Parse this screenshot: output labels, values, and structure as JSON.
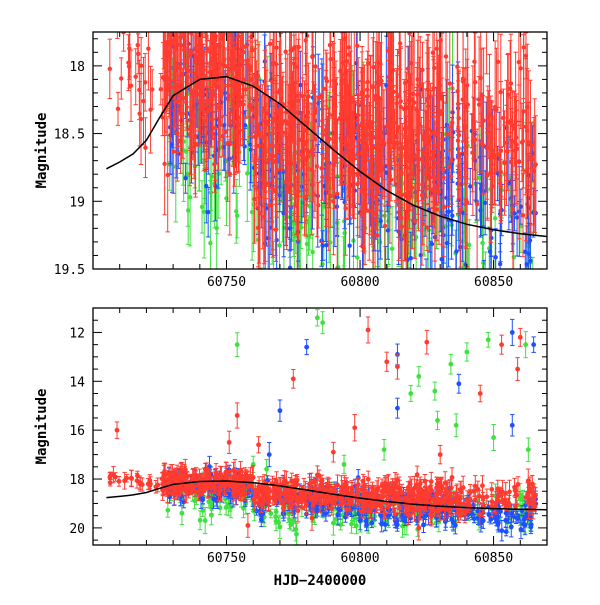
{
  "chart_data": [
    {
      "type": "scatter",
      "panel": "top",
      "ylabel": "Magnitude",
      "xlim": [
        60700,
        60870
      ],
      "ylim": [
        19.5,
        17.75
      ],
      "y_inverted": true,
      "xticks": [
        60750,
        60800,
        60850
      ],
      "yticks": [
        18,
        18.5,
        19,
        19.5
      ],
      "ytick_labels": [
        "18",
        "18.5",
        "19",
        "19.5"
      ],
      "colors": {
        "red": "#ff3b30",
        "blue": "#1e50ff",
        "green": "#3fe03f",
        "model": "#000000"
      },
      "model_curve": {
        "x": [
          60705,
          60710,
          60715,
          60720,
          60725,
          60730,
          60740,
          60750,
          60760,
          60770,
          60780,
          60790,
          60800,
          60810,
          60820,
          60830,
          60840,
          60850,
          60860,
          60870
        ],
        "y": [
          18.76,
          18.71,
          18.65,
          18.55,
          18.38,
          18.22,
          18.1,
          18.08,
          18.15,
          18.28,
          18.45,
          18.62,
          18.78,
          18.92,
          19.03,
          19.11,
          19.17,
          19.21,
          19.24,
          19.26
        ]
      },
      "series": [
        {
          "color": "red",
          "density": [
            [
              60706,
              60716,
              10,
              17.95,
              0.25,
              0.22
            ],
            [
              60716,
              60726,
              14,
              18.25,
              0.32,
              0.22
            ],
            [
              60726,
              60760,
              220,
              18.05,
              0.42,
              0.25
            ],
            [
              60760,
              60800,
              200,
              18.45,
              0.5,
              0.3
            ],
            [
              60800,
              60832,
              200,
              18.5,
              0.55,
              0.3
            ],
            [
              60832,
              60866,
              110,
              18.55,
              0.5,
              0.3
            ]
          ]
        },
        {
          "color": "blue",
          "density": [
            [
              60728,
              60760,
              90,
              18.25,
              0.5,
              0.2
            ],
            [
              60760,
              60800,
              110,
              18.7,
              0.5,
              0.2
            ],
            [
              60800,
              60840,
              110,
              18.9,
              0.5,
              0.2
            ],
            [
              60840,
              60866,
              50,
              19.0,
              0.45,
              0.2
            ]
          ]
        },
        {
          "color": "green",
          "density": [
            [
              60728,
              60760,
              60,
              18.5,
              0.55,
              0.25
            ],
            [
              60760,
              60800,
              70,
              18.9,
              0.5,
              0.25
            ],
            [
              60800,
              60840,
              70,
              19.0,
              0.5,
              0.25
            ],
            [
              60840,
              60866,
              30,
              19.1,
              0.45,
              0.25
            ]
          ]
        }
      ]
    },
    {
      "type": "scatter",
      "panel": "bottom",
      "xlabel": "HJD−2400000",
      "ylabel": "Magnitude",
      "xlim": [
        60700,
        60870
      ],
      "ylim": [
        20.7,
        11.0
      ],
      "y_inverted": true,
      "xticks": [
        60750,
        60800,
        60850
      ],
      "yticks": [
        12,
        14,
        16,
        18,
        20
      ],
      "ytick_labels": [
        "12",
        "14",
        "16",
        "18",
        "20"
      ],
      "colors": {
        "red": "#ff3b30",
        "blue": "#1e50ff",
        "green": "#3fe03f",
        "model": "#000000"
      },
      "model_curve": {
        "x": [
          60705,
          60710,
          60715,
          60720,
          60725,
          60730,
          60740,
          60750,
          60760,
          60770,
          60780,
          60790,
          60800,
          60810,
          60820,
          60830,
          60840,
          60850,
          60860,
          60870
        ],
        "y": [
          18.76,
          18.71,
          18.65,
          18.55,
          18.38,
          18.22,
          18.1,
          18.08,
          18.15,
          18.28,
          18.45,
          18.62,
          18.78,
          18.92,
          19.03,
          19.11,
          19.17,
          19.21,
          19.24,
          19.26
        ]
      },
      "series": [
        {
          "color": "red",
          "density": [
            [
              60706,
              60716,
              10,
              18.0,
              0.15,
              0.25
            ],
            [
              60716,
              60726,
              12,
              18.1,
              0.2,
              0.25
            ],
            [
              60726,
              60760,
              170,
              18.1,
              0.35,
              0.35
            ],
            [
              60760,
              60800,
              170,
              18.6,
              0.45,
              0.35
            ],
            [
              60800,
              60832,
              170,
              18.8,
              0.55,
              0.35
            ],
            [
              60832,
              60866,
              90,
              18.8,
              0.55,
              0.35
            ]
          ],
          "outliers": [
            [
              60709,
              16.0
            ],
            [
              60754,
              15.4
            ],
            [
              60751,
              16.5
            ],
            [
              60762,
              16.6
            ],
            [
              60775,
              13.9
            ],
            [
              60790,
              16.9
            ],
            [
              60798,
              15.9
            ],
            [
              60803,
              11.9
            ],
            [
              60810,
              13.2
            ],
            [
              60814,
              13.4
            ],
            [
              60825,
              12.4
            ],
            [
              60830,
              17.0
            ],
            [
              60845,
              14.5
            ],
            [
              60853,
              12.5
            ],
            [
              60860,
              12.2
            ],
            [
              60859,
              13.5
            ],
            [
              60758,
              19.9
            ],
            [
              60782,
              19.6
            ],
            [
              60822,
              20.0
            ]
          ]
        },
        {
          "color": "blue",
          "density": [
            [
              60728,
              60760,
              90,
              18.3,
              0.5,
              0.3
            ],
            [
              60760,
              60800,
              100,
              18.9,
              0.55,
              0.3
            ],
            [
              60800,
              60840,
              120,
              19.2,
              0.55,
              0.3
            ],
            [
              60840,
              60866,
              60,
              19.4,
              0.5,
              0.3
            ]
          ],
          "outliers": [
            [
              60770,
              15.2
            ],
            [
              60780,
              12.6
            ],
            [
              60814,
              12.9
            ],
            [
              60814,
              15.1
            ],
            [
              60837,
              14.1
            ],
            [
              60857,
              12.0
            ],
            [
              60865,
              12.5
            ],
            [
              60857,
              15.8
            ],
            [
              60766,
              17.0
            ]
          ]
        },
        {
          "color": "green",
          "density": [
            [
              60728,
              60760,
              55,
              18.7,
              0.6,
              0.35
            ],
            [
              60760,
              60800,
              70,
              19.2,
              0.6,
              0.35
            ],
            [
              60800,
              60840,
              70,
              19.3,
              0.6,
              0.35
            ],
            [
              60840,
              60866,
              30,
              19.4,
              0.55,
              0.35
            ]
          ],
          "outliers": [
            [
              60754,
              12.5
            ],
            [
              60784,
              11.4
            ],
            [
              60786,
              11.6
            ],
            [
              60819,
              14.5
            ],
            [
              60822,
              13.8
            ],
            [
              60828,
              14.4
            ],
            [
              60834,
              13.3
            ],
            [
              60840,
              12.8
            ],
            [
              60848,
              12.3
            ],
            [
              60850,
              16.3
            ],
            [
              60862,
              12.5
            ],
            [
              60863,
              16.8
            ],
            [
              60809,
              16.8
            ],
            [
              60760,
              17.4
            ],
            [
              60794,
              17.4
            ],
            [
              60829,
              15.6
            ],
            [
              60836,
              15.8
            ],
            [
              60765,
              17.6
            ],
            [
              60742,
              19.7
            ],
            [
              60790,
              19.8
            ]
          ]
        }
      ]
    }
  ]
}
